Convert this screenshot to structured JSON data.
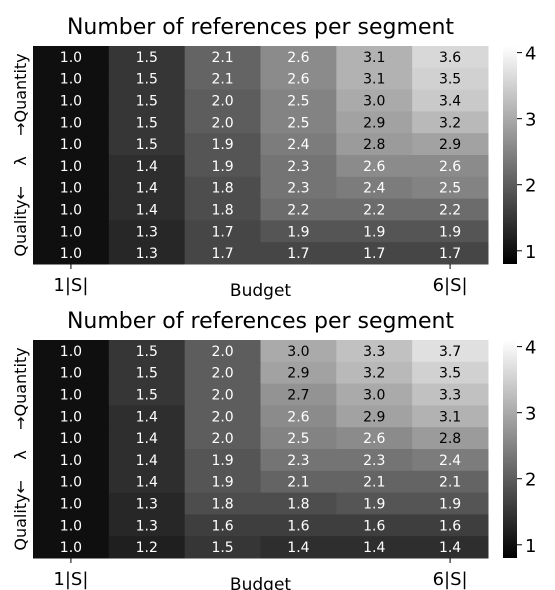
{
  "chart_data": [
    {
      "type": "heatmap",
      "title": "Number of references per segment",
      "xlabel": "Budget",
      "ylabel": {
        "top": "Quantity",
        "middle": "λ",
        "bottom": "Quality",
        "arrow_up": "→",
        "arrow_down": "←"
      },
      "x_tick_labels": {
        "left": "1|S|",
        "right": "6|S|"
      },
      "colorbar": {
        "min": 0.8,
        "max": 4.1,
        "ticks": [
          "1",
          "2",
          "3",
          "4"
        ],
        "tick_values": [
          1,
          2,
          3,
          4
        ],
        "colormap": "gray"
      },
      "values": [
        [
          1.0,
          1.5,
          2.1,
          2.6,
          3.1,
          3.6
        ],
        [
          1.0,
          1.5,
          2.1,
          2.6,
          3.1,
          3.5
        ],
        [
          1.0,
          1.5,
          2.0,
          2.5,
          3.0,
          3.4
        ],
        [
          1.0,
          1.5,
          2.0,
          2.5,
          2.9,
          3.2
        ],
        [
          1.0,
          1.5,
          1.9,
          2.4,
          2.8,
          2.9
        ],
        [
          1.0,
          1.4,
          1.9,
          2.3,
          2.6,
          2.6
        ],
        [
          1.0,
          1.4,
          1.8,
          2.3,
          2.4,
          2.5
        ],
        [
          1.0,
          1.4,
          1.8,
          2.2,
          2.2,
          2.2
        ],
        [
          1.0,
          1.3,
          1.7,
          1.9,
          1.9,
          1.9
        ],
        [
          1.0,
          1.3,
          1.7,
          1.7,
          1.7,
          1.7
        ]
      ]
    },
    {
      "type": "heatmap",
      "title": "Number of references per segment",
      "xlabel": "Budget",
      "ylabel": {
        "top": "Quantity",
        "middle": "λ",
        "bottom": "Quality",
        "arrow_up": "→",
        "arrow_down": "←"
      },
      "x_tick_labels": {
        "left": "1|S|",
        "right": "6|S|"
      },
      "colorbar": {
        "min": 0.8,
        "max": 4.1,
        "ticks": [
          "1",
          "2",
          "3",
          "4"
        ],
        "tick_values": [
          1,
          2,
          3,
          4
        ],
        "colormap": "gray"
      },
      "values": [
        [
          1.0,
          1.5,
          2.0,
          3.0,
          3.3,
          3.7
        ],
        [
          1.0,
          1.5,
          2.0,
          2.9,
          3.2,
          3.5
        ],
        [
          1.0,
          1.5,
          2.0,
          2.7,
          3.0,
          3.3
        ],
        [
          1.0,
          1.4,
          2.0,
          2.6,
          2.9,
          3.1
        ],
        [
          1.0,
          1.4,
          2.0,
          2.5,
          2.6,
          2.8
        ],
        [
          1.0,
          1.4,
          1.9,
          2.3,
          2.3,
          2.4
        ],
        [
          1.0,
          1.4,
          1.9,
          2.1,
          2.1,
          2.1
        ],
        [
          1.0,
          1.3,
          1.8,
          1.8,
          1.9,
          1.9
        ],
        [
          1.0,
          1.3,
          1.6,
          1.6,
          1.6,
          1.6
        ],
        [
          1.0,
          1.2,
          1.5,
          1.4,
          1.4,
          1.4
        ]
      ]
    }
  ]
}
